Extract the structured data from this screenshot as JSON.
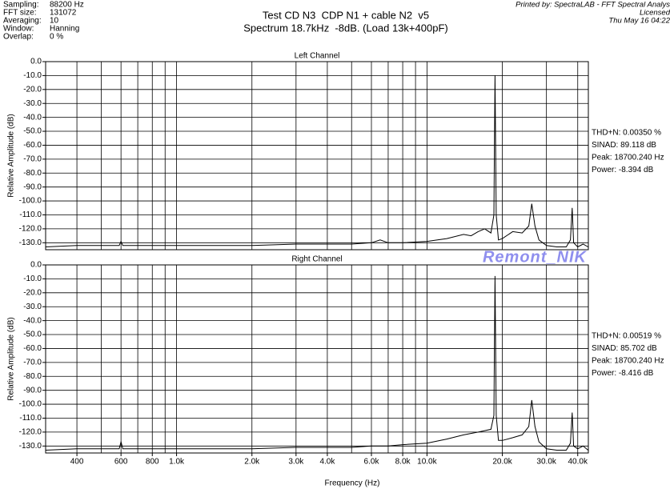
{
  "header": {
    "info": [
      [
        "Sampling:",
        "88200 Hz"
      ],
      [
        "FFT size:",
        "131072"
      ],
      [
        "Averaging:",
        "10"
      ],
      [
        "Window:",
        "Hanning"
      ],
      [
        "Overlap:",
        "0 %"
      ]
    ],
    "title": [
      "Test CD N3  CDP N1 + cable N2  v5",
      "Spectrum 18.7kHz  -8dB. (Load 13k+400pF)"
    ],
    "printed": [
      "Printed by: SpectraLAB - FFT Spectral Analys",
      "Licensed",
      "Thu May 16 04:22"
    ],
    "watermark": "Remont_NIK",
    "x_label": "Frequency (Hz)"
  },
  "chart_data": [
    {
      "type": "line",
      "title": "Left Channel",
      "y_label": "Relative Amplitude (dB)",
      "xscale": "log",
      "color": "#000000",
      "xlim": [
        300,
        44100
      ],
      "ylim": [
        -135,
        0
      ],
      "yticks": [
        {
          "value": 0,
          "label": "0.0"
        },
        {
          "value": -10,
          "label": "-10.0"
        },
        {
          "value": -20,
          "label": "-20.0"
        },
        {
          "value": -30,
          "label": "-30.0"
        },
        {
          "value": -40,
          "label": "-40.0"
        },
        {
          "value": -50,
          "label": "-50.0"
        },
        {
          "value": -60,
          "label": "-60.0"
        },
        {
          "value": -70,
          "label": "-70.0"
        },
        {
          "value": -80,
          "label": "-80.0"
        },
        {
          "value": -90,
          "label": "-90.0"
        },
        {
          "value": -100,
          "label": "-100.0"
        },
        {
          "value": -110,
          "label": "-110.0"
        },
        {
          "value": -120,
          "label": "-120.0"
        },
        {
          "value": -130,
          "label": "-130.0"
        }
      ],
      "xgrid": [
        400,
        500,
        600,
        700,
        800,
        900,
        1000,
        2000,
        3000,
        4000,
        5000,
        6000,
        7000,
        8000,
        9000,
        10000,
        20000,
        30000,
        40000
      ],
      "x": [
        300,
        400,
        500,
        590,
        600,
        610,
        800,
        1000,
        1500,
        2000,
        3000,
        4000,
        5000,
        6000,
        6500,
        7000,
        8000,
        10000,
        12000,
        14000,
        15000,
        16000,
        17000,
        18000,
        18500,
        18700,
        18900,
        19300,
        20000,
        22000,
        24000,
        25500,
        26200,
        27000,
        28000,
        30000,
        33000,
        36000,
        37400,
        38000,
        38500,
        40000,
        42000,
        44000
      ],
      "values": [
        -133,
        -132,
        -132,
        -132,
        -129,
        -132,
        -132,
        -132,
        -132,
        -132,
        -131,
        -131,
        -131,
        -130,
        -128,
        -130,
        -130,
        -129,
        -127,
        -124,
        -125,
        -122,
        -120,
        -123,
        -110,
        -10,
        -110,
        -128,
        -127,
        -122,
        -123,
        -118,
        -102,
        -118,
        -128,
        -132,
        -133,
        -133,
        -128,
        -105,
        -130,
        -133,
        -131,
        -133
      ],
      "annotations": [
        "THD+N: 0.00350 %",
        "SINAD: 89.118 dB",
        "Peak: 18700.240 Hz",
        "Power: -8.394 dB"
      ]
    },
    {
      "type": "line",
      "title": "Right Channel",
      "y_label": "Relative Amplitude (dB)",
      "xscale": "log",
      "color": "#000000",
      "xlim": [
        300,
        44100
      ],
      "ylim": [
        -135,
        0
      ],
      "yticks": [
        {
          "value": 0,
          "label": "0.0"
        },
        {
          "value": -10,
          "label": "-10.0"
        },
        {
          "value": -20,
          "label": "-20.0"
        },
        {
          "value": -30,
          "label": "-30.0"
        },
        {
          "value": -40,
          "label": "-40.0"
        },
        {
          "value": -50,
          "label": "-50.0"
        },
        {
          "value": -60,
          "label": "-60.0"
        },
        {
          "value": -70,
          "label": "-70.0"
        },
        {
          "value": -80,
          "label": "-80.0"
        },
        {
          "value": -90,
          "label": "-90.0"
        },
        {
          "value": -100,
          "label": "-100.0"
        },
        {
          "value": -110,
          "label": "-110.0"
        },
        {
          "value": -120,
          "label": "-120.0"
        },
        {
          "value": -130,
          "label": "-130.0"
        }
      ],
      "xgrid": [
        400,
        500,
        600,
        700,
        800,
        900,
        1000,
        2000,
        3000,
        4000,
        5000,
        6000,
        7000,
        8000,
        9000,
        10000,
        20000,
        30000,
        40000
      ],
      "xticks": [
        400,
        600,
        800,
        {
          "value": 1000,
          "label": "1.0k"
        },
        {
          "value": 2000,
          "label": "2.0k"
        },
        {
          "value": 3000,
          "label": "3.0k"
        },
        {
          "value": 4000,
          "label": "4.0k"
        },
        {
          "value": 6000,
          "label": "6.0k"
        },
        {
          "value": 8000,
          "label": "8.0k"
        },
        {
          "value": 10000,
          "label": "10.0k"
        },
        {
          "value": 20000,
          "label": "20.0k"
        },
        {
          "value": 30000,
          "label": "30.0k"
        },
        {
          "value": 40000,
          "label": "40.0k"
        }
      ],
      "x": [
        300,
        400,
        500,
        590,
        600,
        610,
        800,
        1000,
        1500,
        2000,
        3000,
        4000,
        5000,
        6000,
        7000,
        8000,
        10000,
        12000,
        14000,
        16000,
        17000,
        18000,
        18500,
        18700,
        18900,
        19300,
        20000,
        22000,
        24000,
        25500,
        26200,
        27000,
        28000,
        30000,
        33000,
        36000,
        37400,
        38000,
        38500,
        40000,
        42000,
        44000
      ],
      "values": [
        -133,
        -132,
        -132,
        -132,
        -127,
        -132,
        -132,
        -132,
        -132,
        -132,
        -131,
        -131,
        -131,
        -130,
        -130,
        -129,
        -128,
        -125,
        -122,
        -120,
        -119,
        -118,
        -108,
        -8,
        -108,
        -126,
        -126,
        -124,
        -122,
        -116,
        -97,
        -116,
        -127,
        -132,
        -133,
        -133,
        -128,
        -106,
        -130,
        -132,
        -130,
        -133
      ],
      "annotations": [
        "THD+N: 0.00519 %",
        "SINAD: 85.702 dB",
        "Peak: 18700.240 Hz",
        "Power: -8.416 dB"
      ]
    }
  ]
}
